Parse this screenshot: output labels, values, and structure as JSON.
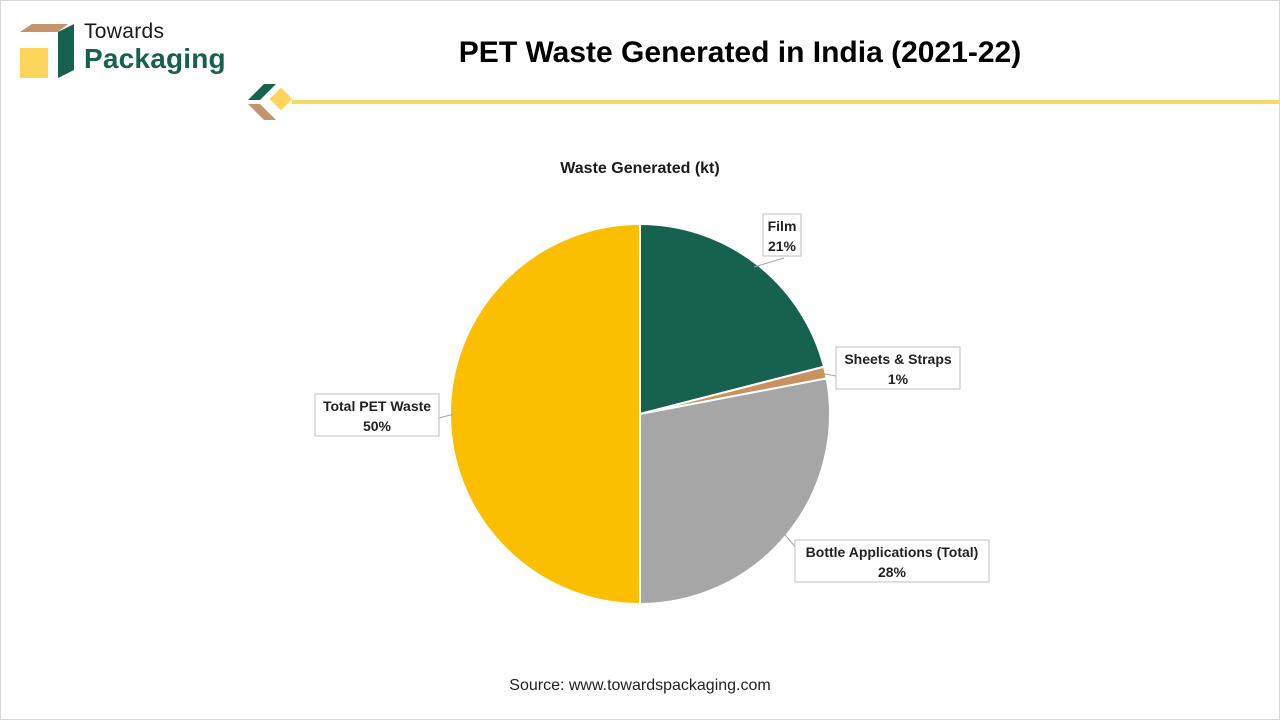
{
  "brand": {
    "line1": "Towards",
    "line2": "Packaging"
  },
  "page_title": "PET Waste Generated in India (2021-22)",
  "source": "Source: www.towardspackaging.com",
  "colors": {
    "brand_green": "#17614f",
    "brand_tan": "#c4956a",
    "brand_yellow": "#fdd55a",
    "divider_yellow": "#f7d96a"
  },
  "chart_data": {
    "type": "pie",
    "title": "Waste Generated (kt)",
    "categories": [
      "Film",
      "Sheets & Straps",
      "Bottle Applications (Total)",
      "Total PET Waste"
    ],
    "values": [
      21,
      1,
      28,
      50
    ],
    "labels": [
      "21%",
      "1%",
      "28%",
      "50%"
    ],
    "colors": [
      "#17614f",
      "#c8925e",
      "#a6a6a6",
      "#fcbf00"
    ],
    "start_angle_deg": 0,
    "direction": "clockwise",
    "legend": "none"
  }
}
